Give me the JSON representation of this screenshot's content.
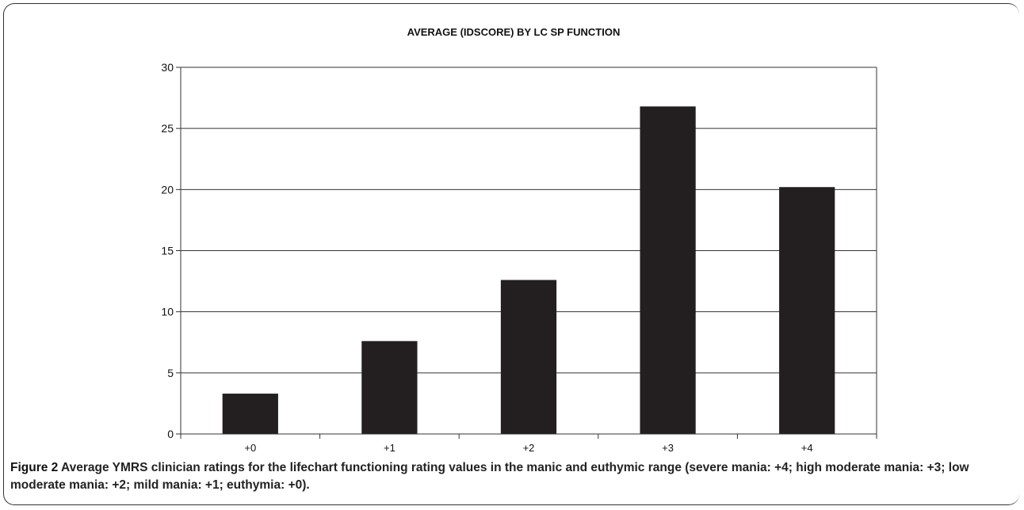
{
  "chart_data": {
    "type": "bar",
    "title": "AVERAGE (IDSCORE) BY LC SP FUNCTION",
    "categories": [
      "+0",
      "+1",
      "+2",
      "+3",
      "+4"
    ],
    "values": [
      3.3,
      7.6,
      12.6,
      26.8,
      20.2
    ],
    "ylim": [
      0,
      30
    ],
    "yticks": [
      0,
      5,
      10,
      15,
      20,
      25,
      30
    ],
    "grid": true,
    "legend": "none",
    "bar_color": "#231f20"
  },
  "caption": {
    "label": "Figure 2",
    "text": " Average YMRS clinician ratings for the lifechart functioning rating values in the manic and euthymic range (severe mania: +4; high moderate mania: +3; low moderate mania: +2; mild mania: +1; euthymia: +0)."
  }
}
